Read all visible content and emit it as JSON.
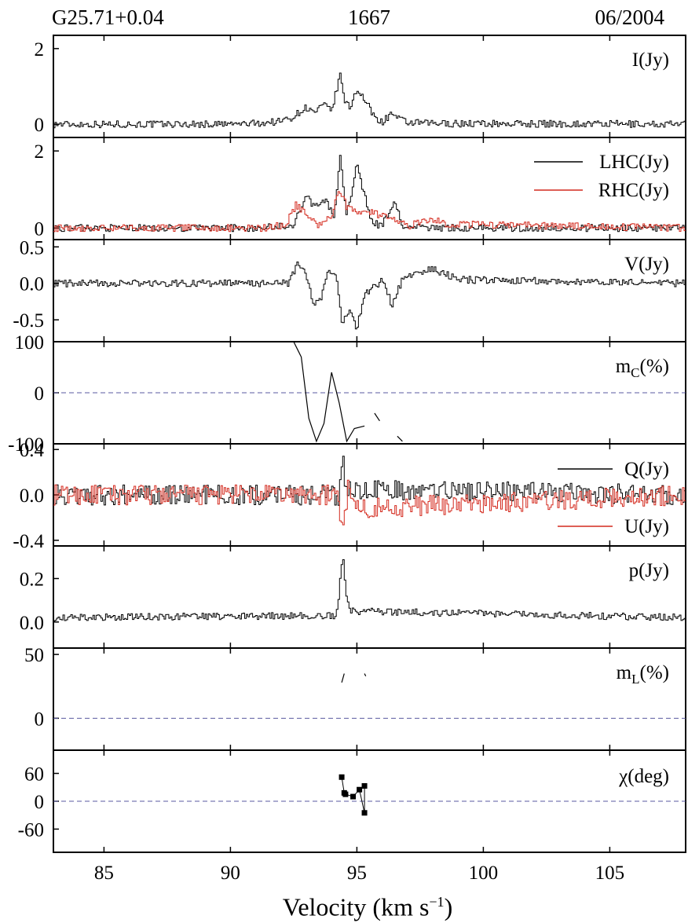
{
  "header": {
    "source": "G25.71+0.04",
    "frequency": "1667",
    "date": "06/2004"
  },
  "xaxis": {
    "label_main": "Velocity (km s",
    "label_sup": "−1",
    "label_end": ")",
    "range": [
      83,
      108
    ],
    "ticks": [
      "85",
      "90",
      "95",
      "100",
      "105"
    ],
    "tick_values": [
      85,
      90,
      95,
      100,
      105
    ]
  },
  "colors": {
    "black": "#000000",
    "red": "#d42a1e",
    "dash": "#5a5aa0"
  },
  "chart_data": [
    {
      "type": "line",
      "id": "I",
      "ylabel": "I(Jy)",
      "ylim": [
        -0.35,
        2.35
      ],
      "yticks": [
        0,
        2
      ],
      "ytick_labels": [
        "0",
        "2"
      ],
      "series": [
        {
          "name": "I(Jy)",
          "color": "#000000",
          "points": [
            [
              83,
              0
            ],
            [
              90,
              0
            ],
            [
              91,
              0.02
            ],
            [
              92,
              0.08
            ],
            [
              92.5,
              0.2
            ],
            [
              93,
              0.45
            ],
            [
              93.3,
              0.3
            ],
            [
              93.7,
              0.5
            ],
            [
              94,
              0.35
            ],
            [
              94.35,
              1.3
            ],
            [
              94.55,
              0.55
            ],
            [
              94.75,
              0.45
            ],
            [
              95,
              0.95
            ],
            [
              95.3,
              0.65
            ],
            [
              95.7,
              0.2
            ],
            [
              96,
              0.05
            ],
            [
              96.4,
              0.3
            ],
            [
              96.6,
              0.15
            ],
            [
              97,
              0.04
            ],
            [
              98,
              0.02
            ],
            [
              108,
              0
            ]
          ]
        }
      ]
    },
    {
      "type": "line",
      "id": "circ",
      "ylim": [
        -0.3,
        2.35
      ],
      "yticks": [
        0,
        2
      ],
      "ytick_labels": [
        "0",
        "2"
      ],
      "legend": "right",
      "series": [
        {
          "name": "LHC(Jy)",
          "color": "#000000",
          "points": [
            [
              83,
              0
            ],
            [
              91,
              0
            ],
            [
              92.2,
              0.05
            ],
            [
              92.5,
              0.1
            ],
            [
              93,
              0.8
            ],
            [
              93.3,
              0.6
            ],
            [
              93.8,
              0.7
            ],
            [
              94.1,
              0.3
            ],
            [
              94.35,
              1.85
            ],
            [
              94.6,
              0.3
            ],
            [
              95,
              1.65
            ],
            [
              95.3,
              0.85
            ],
            [
              95.6,
              0.15
            ],
            [
              96,
              0.05
            ],
            [
              96.5,
              0.7
            ],
            [
              96.8,
              0.05
            ],
            [
              98,
              0
            ],
            [
              108,
              0
            ]
          ]
        },
        {
          "name": "RHC(Jy)",
          "color": "#d42a1e",
          "points": [
            [
              83,
              0
            ],
            [
              91.5,
              0
            ],
            [
              92.2,
              0.1
            ],
            [
              92.6,
              0.6
            ],
            [
              93,
              0.35
            ],
            [
              93.5,
              0.05
            ],
            [
              94,
              0.3
            ],
            [
              94.3,
              1.05
            ],
            [
              94.6,
              0.55
            ],
            [
              95,
              0.45
            ],
            [
              95.5,
              0.45
            ],
            [
              96,
              0.3
            ],
            [
              96.5,
              0.25
            ],
            [
              97,
              0.05
            ],
            [
              98,
              0.25
            ],
            [
              98.5,
              0.1
            ],
            [
              108,
              0
            ]
          ]
        }
      ]
    },
    {
      "type": "line",
      "id": "V",
      "ylabel": "V(Jy)",
      "ylim": [
        -0.8,
        0.6
      ],
      "yticks": [
        0.5,
        0.0,
        -0.5
      ],
      "ytick_labels": [
        "0.5",
        "0.0",
        "-0.5"
      ],
      "series": [
        {
          "name": "V(Jy)",
          "color": "#000000",
          "points": [
            [
              83,
              0
            ],
            [
              92.3,
              0
            ],
            [
              92.7,
              0.3
            ],
            [
              93,
              0.1
            ],
            [
              93.3,
              -0.3
            ],
            [
              93.6,
              -0.2
            ],
            [
              93.9,
              0.2
            ],
            [
              94.2,
              0.1
            ],
            [
              94.4,
              -0.55
            ],
            [
              94.7,
              -0.35
            ],
            [
              95,
              -0.65
            ],
            [
              95.3,
              -0.15
            ],
            [
              95.7,
              -0.05
            ],
            [
              96,
              0.05
            ],
            [
              96.4,
              -0.3
            ],
            [
              96.8,
              0.05
            ],
            [
              97,
              0.1
            ],
            [
              98,
              0.2
            ],
            [
              99,
              0.05
            ],
            [
              108,
              0
            ]
          ]
        }
      ]
    },
    {
      "type": "line",
      "id": "mc",
      "ylabel": "mC(%)",
      "ylim": [
        -100,
        100
      ],
      "yticks": [
        100,
        0,
        -100
      ],
      "ytick_labels": [
        "100",
        "0",
        "-100"
      ],
      "zero_line": true,
      "series": [
        {
          "name": "mC(%)",
          "color": "#000000",
          "segments": [
            [
              [
                92.5,
                100
              ],
              [
                92.8,
                70
              ],
              [
                93.1,
                -50
              ],
              [
                93.4,
                -95
              ],
              [
                93.7,
                -60
              ],
              [
                94,
                40
              ],
              [
                94.3,
                -20
              ],
              [
                94.6,
                -95
              ],
              [
                94.9,
                -70
              ],
              [
                95.3,
                -65
              ]
            ],
            [
              [
                95.7,
                -40
              ],
              [
                95.9,
                -55
              ]
            ],
            [
              [
                96.6,
                -85
              ],
              [
                96.8,
                -95
              ]
            ]
          ]
        }
      ]
    },
    {
      "type": "line",
      "id": "QU",
      "ylim": [
        -0.45,
        0.45
      ],
      "yticks": [
        0.4,
        0.0,
        -0.4
      ],
      "ytick_labels": [
        "0.4",
        "0.0",
        "-0.4"
      ],
      "series": [
        {
          "name": "Q(Jy)",
          "color": "#000000",
          "points": [
            [
              83,
              0
            ],
            [
              94.1,
              0
            ],
            [
              94.3,
              -0.05
            ],
            [
              94.45,
              0.3
            ],
            [
              94.6,
              0.05
            ],
            [
              108,
              0
            ]
          ]
        },
        {
          "name": "U(Jy)",
          "color": "#d42a1e",
          "points": [
            [
              83,
              0
            ],
            [
              94.2,
              0
            ],
            [
              94.45,
              -0.28
            ],
            [
              94.7,
              0.12
            ],
            [
              95,
              -0.12
            ],
            [
              108,
              0
            ]
          ]
        }
      ]
    },
    {
      "type": "line",
      "id": "p",
      "ylabel": "p(Jy)",
      "ylim": [
        -0.12,
        0.35
      ],
      "yticks": [
        0.2,
        0.0
      ],
      "ytick_labels": [
        "0.2",
        "0.0"
      ],
      "series": [
        {
          "name": "p(Jy)",
          "color": "#000000",
          "points": [
            [
              83,
              0.02
            ],
            [
              94.2,
              0.03
            ],
            [
              94.45,
              0.3
            ],
            [
              94.6,
              0.12
            ],
            [
              94.8,
              0.05
            ],
            [
              108,
              0.02
            ]
          ]
        }
      ]
    },
    {
      "type": "line",
      "id": "mL",
      "ylabel": "mL(%)",
      "ylim": [
        -25,
        55
      ],
      "yticks": [
        50,
        0
      ],
      "ytick_labels": [
        "50",
        "0"
      ],
      "zero_line": true,
      "series": [
        {
          "name": "mL(%)",
          "color": "#000000",
          "segments": [
            [
              [
                94.4,
                28
              ],
              [
                94.5,
                35
              ]
            ],
            [
              [
                95.3,
                35
              ],
              [
                95.35,
                33
              ]
            ]
          ]
        }
      ]
    },
    {
      "type": "scatter",
      "id": "chi",
      "ylabel": "χ(deg)",
      "ylim": [
        -110,
        110
      ],
      "yticks": [
        60,
        0,
        -60
      ],
      "ytick_labels": [
        "60",
        "0",
        "-60"
      ],
      "zero_line": true,
      "series": [
        {
          "name": "χ(deg)",
          "color": "#000000",
          "points": [
            [
              94.4,
              52
            ],
            [
              94.5,
              18
            ],
            [
              94.55,
              15
            ],
            [
              94.85,
              10
            ],
            [
              95.1,
              25
            ],
            [
              95.3,
              -25
            ],
            [
              95.3,
              33
            ]
          ]
        }
      ]
    }
  ]
}
